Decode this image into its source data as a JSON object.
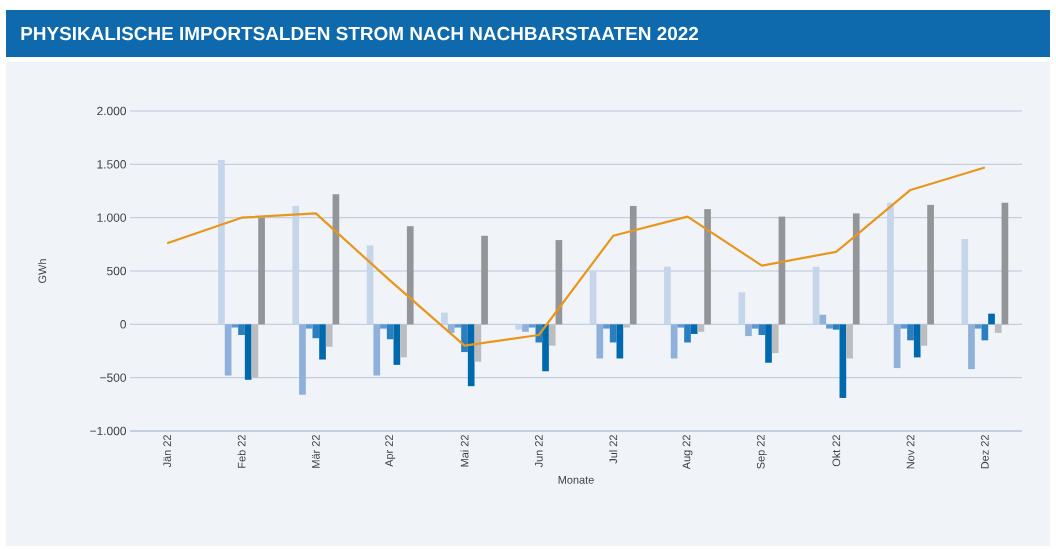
{
  "chart_data": {
    "type": "bar",
    "title": "PHYSIKALISCHE IMPORTSALDEN STROM NACH NACHBARSTAATEN 2022",
    "xlabel": "Monate",
    "ylabel": "GWh",
    "categories": [
      "Jän 22",
      "Feb 22",
      "Mär 22",
      "Apr 22",
      "Mai 22",
      "Jun 22",
      "Jul 22",
      "Aug 22",
      "Sep 22",
      "Okt 22",
      "Nov 22",
      "Dez 22"
    ],
    "ylim": [
      -1000,
      2000
    ],
    "yticks": [
      {
        "value": -1000,
        "label": "−1.000"
      },
      {
        "value": -500,
        "label": "−500"
      },
      0,
      500,
      {
        "value": 1000,
        "label": "1.000"
      },
      {
        "value": 1500,
        "label": "1.500"
      },
      {
        "value": 2000,
        "label": "2.000"
      }
    ],
    "grid": "y",
    "series": [
      {
        "color": "#c5d5ea",
        "values": [
          null,
          1540,
          1110,
          740,
          110,
          -50,
          500,
          540,
          300,
          540,
          1140,
          800
        ]
      },
      {
        "color": "#8eb0da",
        "values": [
          null,
          -480,
          -660,
          -480,
          -80,
          -70,
          -320,
          -320,
          -110,
          90,
          -410,
          -420
        ]
      },
      {
        "color": "#5e98cf",
        "values": [
          null,
          -30,
          -40,
          -40,
          -30,
          -30,
          -40,
          -30,
          -40,
          -40,
          -40,
          -40
        ]
      },
      {
        "color": "#2a7fc0",
        "values": [
          null,
          -100,
          -130,
          -140,
          -260,
          -170,
          -170,
          -170,
          -100,
          -50,
          -150,
          -150
        ]
      },
      {
        "color": "#0068ad",
        "values": [
          null,
          -520,
          -330,
          -380,
          -580,
          -440,
          -320,
          -90,
          -360,
          -690,
          -310,
          100
        ]
      },
      {
        "color": "#bcbdc0",
        "values": [
          null,
          -500,
          -210,
          -310,
          -350,
          -200,
          -30,
          -70,
          -270,
          -320,
          -200,
          -80
        ]
      },
      {
        "color": "#939598",
        "values": [
          null,
          1000,
          1220,
          920,
          830,
          790,
          1110,
          1080,
          1010,
          1040,
          1120,
          1140
        ]
      },
      {
        "type": "line",
        "color": "#e8961c",
        "values": [
          760,
          1000,
          1040,
          410,
          -200,
          -100,
          830,
          1010,
          550,
          680,
          1260,
          1470
        ]
      }
    ]
  }
}
